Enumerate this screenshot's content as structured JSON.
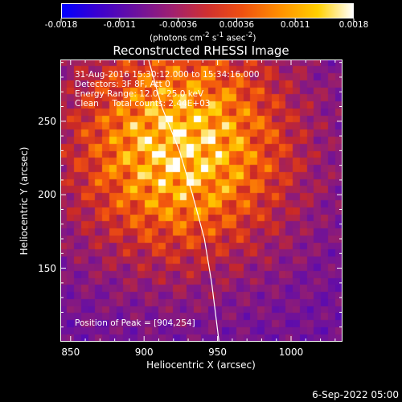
{
  "colorbar": {
    "tick_labels": [
      "-0.0018",
      "-0.0011",
      "-0.00036",
      "0.00036",
      "0.0011",
      "0.0018"
    ],
    "units_html": "(photons cm<sup>-2</sup> s<sup>-1</sup> asec<sup>-2</sup>)",
    "range": [
      -0.0018,
      0.0018
    ]
  },
  "chart_data": {
    "type": "heatmap",
    "title": "Reconstructed RHESSI Image",
    "xlabel": "Heliocentric X (arcsec)",
    "ylabel": "Heliocentric Y (arcsec)",
    "x_ticks": [
      850,
      900,
      950,
      1000
    ],
    "y_ticks": [
      150,
      200,
      250
    ],
    "xlim": [
      843,
      1035
    ],
    "ylim": [
      100,
      292
    ],
    "annotations": [
      "31-Aug-2016 15:30:12.000 to 15:34:16.000",
      "Detectors: 3F 8F, Att 0",
      "Energy Range: 12.0 - 25.0 keV",
      "Clean     Total counts: 2.44E+03"
    ],
    "peak_label": "Position of Peak = [904,254]",
    "peak": [
      904,
      254
    ],
    "limb_curve": [
      [
        903,
        292
      ],
      [
        912,
        260
      ],
      [
        924,
        230
      ],
      [
        933,
        200
      ],
      [
        941,
        170
      ],
      [
        946,
        140
      ],
      [
        951,
        100
      ]
    ]
  },
  "footer": {
    "timestamp": "6-Sep-2022 05:00"
  }
}
